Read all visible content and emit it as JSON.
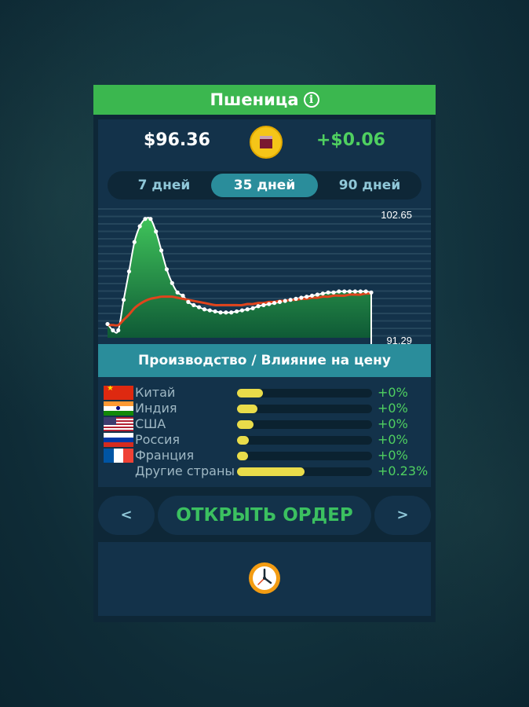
{
  "title": "Пшеница",
  "price": "$96.36",
  "price_change": "+$0.06",
  "tabs": [
    {
      "label": "7 дней",
      "active": false
    },
    {
      "label": "35 дней",
      "active": true
    },
    {
      "label": "90 дней",
      "active": false
    }
  ],
  "chart_data": {
    "type": "line",
    "ylim": [
      91.29,
      102.65
    ],
    "y_max_label": "102.65",
    "y_min_label": "91.29",
    "series": [
      {
        "values": [
          92.6,
          92.0,
          92.0,
          94.9,
          97.6,
          100.4,
          101.9,
          102.6,
          102.6,
          101.4,
          99.6,
          97.8,
          96.5,
          95.6,
          95.3,
          94.7,
          94.4,
          94.2,
          94.0,
          93.9,
          93.8,
          93.7,
          93.7,
          93.7,
          93.8,
          93.9,
          94.0,
          94.1,
          94.3,
          94.4,
          94.5,
          94.6,
          94.7,
          94.8,
          94.9,
          95.0,
          95.1,
          95.2,
          95.3,
          95.4,
          95.5,
          95.6,
          95.6,
          95.7,
          95.7,
          95.7,
          95.7,
          95.7,
          95.7,
          95.6
        ]
      },
      {
        "values": [
          92.5,
          92.5,
          92.5,
          93.0,
          93.5,
          94.1,
          94.5,
          94.8,
          95.0,
          95.1,
          95.2,
          95.2,
          95.2,
          95.1,
          95.0,
          94.9,
          94.8,
          94.7,
          94.6,
          94.5,
          94.4,
          94.4,
          94.4,
          94.4,
          94.4,
          94.4,
          94.5,
          94.5,
          94.6,
          94.6,
          94.7,
          94.7,
          94.8,
          94.8,
          94.9,
          94.9,
          95.0,
          95.0,
          95.1,
          95.1,
          95.2,
          95.2,
          95.3,
          95.3,
          95.3,
          95.4,
          95.4,
          95.4,
          95.5,
          95.5
        ]
      }
    ]
  },
  "section_title": "Производство / Влияние на цену",
  "countries": [
    {
      "name": "Китай",
      "fill": 0.19,
      "pct": "+0%",
      "flag": "china-flag-icon"
    },
    {
      "name": "Индия",
      "fill": 0.15,
      "pct": "+0%",
      "flag": "india-flag-icon"
    },
    {
      "name": "США",
      "fill": 0.12,
      "pct": "+0%",
      "flag": "usa-flag-icon"
    },
    {
      "name": "Россия",
      "fill": 0.09,
      "pct": "+0%",
      "flag": "russia-flag-icon"
    },
    {
      "name": "Франция",
      "fill": 0.08,
      "pct": "+0%",
      "flag": "france-flag-icon"
    },
    {
      "name": "Другие страны",
      "fill": 0.5,
      "pct": "+0.23%",
      "flag": ""
    }
  ],
  "prev_label": "<",
  "next_label": ">",
  "order_label": "ОТКРЫТЬ ОРДЕР",
  "colors": {
    "title_bar": "#3bb74f",
    "accent_teal": "#2a8d9b",
    "positive": "#4fd060",
    "bar_fill": "#e9dc4a",
    "trend_line": "#e0441c"
  }
}
